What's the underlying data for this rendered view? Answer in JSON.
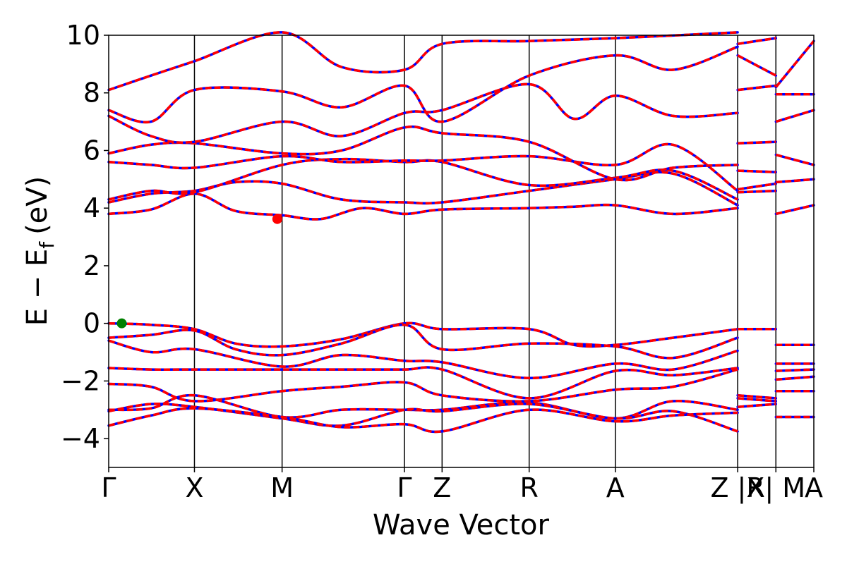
{
  "chart_data": {
    "type": "line",
    "title": "",
    "xlabel": "Wave Vector",
    "ylabel": "E − E",
    "ylabel_subscript": "f",
    "ylabel_unit": "(eV)",
    "ylim": [
      -5,
      10
    ],
    "yticks": [
      {
        "value": 10,
        "label": "10"
      },
      {
        "value": 8,
        "label": "8"
      },
      {
        "value": 6,
        "label": "6"
      },
      {
        "value": 4,
        "label": "4"
      },
      {
        "value": 2,
        "label": "2"
      },
      {
        "value": 0,
        "label": "0"
      },
      {
        "value": -2,
        "label": "−2"
      },
      {
        "value": -4,
        "label": "−4"
      }
    ],
    "xlim": [
      0,
      1
    ],
    "kpoints": [
      {
        "label": "Γ",
        "x": 0.0
      },
      {
        "label": "X",
        "x": 0.1216
      },
      {
        "label": "M",
        "x": 0.2459
      },
      {
        "label": "Γ",
        "x": 0.4194
      },
      {
        "label": "Z",
        "x": 0.4728
      },
      {
        "label": "R",
        "x": 0.5963
      },
      {
        "label": "A",
        "x": 0.7185
      },
      {
        "label": "Z |R",
        "x": 0.892
      },
      {
        "label": "X| M",
        "x": 0.9462
      },
      {
        "label": "A",
        "x": 1.0
      }
    ],
    "segment_breaks": [
      0.892,
      0.9462
    ],
    "series": [
      {
        "values": [
          [
            0,
            3.8
          ],
          [
            0.06,
            3.95
          ],
          [
            0.1216,
            4.5
          ],
          [
            0.18,
            3.9
          ],
          [
            0.2459,
            3.75
          ],
          [
            0.3,
            3.62
          ],
          [
            0.36,
            4.0
          ],
          [
            0.4194,
            3.8
          ],
          [
            0.4728,
            3.95
          ],
          [
            0.5963,
            4.0
          ],
          [
            0.66,
            4.05
          ],
          [
            0.7185,
            4.1
          ],
          [
            0.8,
            3.8
          ],
          [
            0.892,
            4.0
          ]
        ]
      },
      {
        "values": [
          [
            0,
            4.2
          ],
          [
            0.06,
            4.5
          ],
          [
            0.1216,
            4.6
          ],
          [
            0.18,
            4.9
          ],
          [
            0.2459,
            4.85
          ],
          [
            0.33,
            4.3
          ],
          [
            0.4194,
            4.2
          ],
          [
            0.4728,
            4.2
          ],
          [
            0.5963,
            4.6
          ],
          [
            0.7185,
            5.0
          ],
          [
            0.8,
            5.2
          ],
          [
            0.892,
            4.1
          ]
        ]
      },
      {
        "values": [
          [
            0,
            4.3
          ],
          [
            0.06,
            4.6
          ],
          [
            0.1216,
            4.55
          ],
          [
            0.2459,
            5.5
          ],
          [
            0.33,
            5.7
          ],
          [
            0.4194,
            5.6
          ],
          [
            0.4728,
            5.6
          ],
          [
            0.5963,
            4.8
          ],
          [
            0.7185,
            5.05
          ],
          [
            0.8,
            5.3
          ],
          [
            0.892,
            4.3
          ]
        ]
      },
      {
        "values": [
          [
            0,
            5.6
          ],
          [
            0.06,
            5.5
          ],
          [
            0.1216,
            5.4
          ],
          [
            0.2459,
            5.8
          ],
          [
            0.33,
            5.6
          ],
          [
            0.4194,
            5.65
          ],
          [
            0.4728,
            5.65
          ],
          [
            0.5963,
            5.8
          ],
          [
            0.7185,
            5.5
          ],
          [
            0.8,
            6.2
          ],
          [
            0.892,
            4.6
          ]
        ]
      },
      {
        "values": [
          [
            0,
            5.9
          ],
          [
            0.06,
            6.2
          ],
          [
            0.1216,
            6.25
          ],
          [
            0.2459,
            5.9
          ],
          [
            0.33,
            6.0
          ],
          [
            0.4194,
            6.8
          ],
          [
            0.4728,
            6.6
          ],
          [
            0.5963,
            6.3
          ],
          [
            0.7185,
            5.0
          ],
          [
            0.8,
            5.4
          ],
          [
            0.892,
            5.5
          ]
        ]
      },
      {
        "values": [
          [
            0,
            7.2
          ],
          [
            0.06,
            6.5
          ],
          [
            0.1216,
            6.3
          ],
          [
            0.2459,
            7.0
          ],
          [
            0.33,
            6.5
          ],
          [
            0.4194,
            7.3
          ],
          [
            0.4728,
            7.4
          ],
          [
            0.5963,
            8.3
          ],
          [
            0.66,
            7.1
          ],
          [
            0.7185,
            7.9
          ],
          [
            0.8,
            7.2
          ],
          [
            0.892,
            7.3
          ]
        ]
      },
      {
        "values": [
          [
            0,
            7.4
          ],
          [
            0.06,
            7.0
          ],
          [
            0.1216,
            8.1
          ],
          [
            0.2459,
            8.05
          ],
          [
            0.33,
            7.5
          ],
          [
            0.4194,
            8.25
          ],
          [
            0.4728,
            7.0
          ],
          [
            0.5963,
            8.6
          ],
          [
            0.7185,
            9.3
          ],
          [
            0.8,
            8.8
          ],
          [
            0.892,
            9.6
          ]
        ]
      },
      {
        "values": [
          [
            0,
            8.1
          ],
          [
            0.06,
            8.6
          ],
          [
            0.1216,
            9.1
          ],
          [
            0.2459,
            10.1
          ],
          [
            0.33,
            8.9
          ],
          [
            0.4194,
            8.8
          ],
          [
            0.4728,
            9.7
          ],
          [
            0.5963,
            9.8
          ],
          [
            0.7185,
            9.9
          ],
          [
            0.892,
            10.1
          ]
        ]
      },
      {
        "values": [
          [
            0,
            0.0
          ],
          [
            0.06,
            -0.05
          ],
          [
            0.1216,
            -0.2
          ],
          [
            0.18,
            -0.7
          ],
          [
            0.2459,
            -0.8
          ],
          [
            0.33,
            -0.55
          ],
          [
            0.4194,
            0.0
          ],
          [
            0.4728,
            -0.2
          ],
          [
            0.5963,
            -0.2
          ],
          [
            0.66,
            -0.75
          ],
          [
            0.7185,
            -0.75
          ],
          [
            0.8,
            -0.5
          ],
          [
            0.892,
            -0.2
          ]
        ]
      },
      {
        "values": [
          [
            0,
            -0.5
          ],
          [
            0.06,
            -0.4
          ],
          [
            0.1216,
            -0.25
          ],
          [
            0.18,
            -0.9
          ],
          [
            0.2459,
            -1.1
          ],
          [
            0.33,
            -0.7
          ],
          [
            0.4194,
            -0.05
          ],
          [
            0.4728,
            -0.9
          ],
          [
            0.5963,
            -0.7
          ],
          [
            0.7185,
            -0.8
          ],
          [
            0.8,
            -1.2
          ],
          [
            0.892,
            -0.5
          ]
        ]
      },
      {
        "values": [
          [
            0,
            -0.6
          ],
          [
            0.06,
            -1.0
          ],
          [
            0.1216,
            -0.9
          ],
          [
            0.2459,
            -1.5
          ],
          [
            0.33,
            -1.1
          ],
          [
            0.4194,
            -1.3
          ],
          [
            0.4728,
            -1.35
          ],
          [
            0.5963,
            -1.9
          ],
          [
            0.7185,
            -1.4
          ],
          [
            0.8,
            -1.6
          ],
          [
            0.892,
            -0.95
          ]
        ]
      },
      {
        "values": [
          [
            0,
            -1.55
          ],
          [
            0.06,
            -1.6
          ],
          [
            0.1216,
            -1.6
          ],
          [
            0.2459,
            -1.6
          ],
          [
            0.33,
            -1.6
          ],
          [
            0.4194,
            -1.6
          ],
          [
            0.4728,
            -1.6
          ],
          [
            0.5963,
            -2.6
          ],
          [
            0.7185,
            -1.65
          ],
          [
            0.8,
            -1.8
          ],
          [
            0.892,
            -1.55
          ]
        ]
      },
      {
        "values": [
          [
            0,
            -2.1
          ],
          [
            0.06,
            -2.2
          ],
          [
            0.1216,
            -2.7
          ],
          [
            0.2459,
            -2.35
          ],
          [
            0.33,
            -2.2
          ],
          [
            0.4194,
            -2.05
          ],
          [
            0.4728,
            -2.5
          ],
          [
            0.5963,
            -2.7
          ],
          [
            0.7185,
            -2.3
          ],
          [
            0.8,
            -2.2
          ],
          [
            0.892,
            -1.6
          ]
        ]
      },
      {
        "values": [
          [
            0,
            -3.0
          ],
          [
            0.06,
            -2.95
          ],
          [
            0.1216,
            -2.5
          ],
          [
            0.2459,
            -3.25
          ],
          [
            0.33,
            -3.0
          ],
          [
            0.4194,
            -3.0
          ],
          [
            0.4728,
            -3.0
          ],
          [
            0.5963,
            -2.75
          ],
          [
            0.7185,
            -3.3
          ],
          [
            0.8,
            -2.7
          ],
          [
            0.892,
            -3.0
          ]
        ]
      },
      {
        "values": [
          [
            0,
            -3.05
          ],
          [
            0.06,
            -2.8
          ],
          [
            0.1216,
            -2.9
          ],
          [
            0.2459,
            -3.3
          ],
          [
            0.33,
            -3.55
          ],
          [
            0.4194,
            -3.0
          ],
          [
            0.4728,
            -3.05
          ],
          [
            0.5963,
            -2.8
          ],
          [
            0.7185,
            -3.3
          ],
          [
            0.8,
            -3.05
          ],
          [
            0.892,
            -3.75
          ]
        ]
      },
      {
        "values": [
          [
            0,
            -3.55
          ],
          [
            0.06,
            -3.2
          ],
          [
            0.1216,
            -2.95
          ],
          [
            0.2459,
            -3.25
          ],
          [
            0.33,
            -3.6
          ],
          [
            0.4194,
            -3.5
          ],
          [
            0.4728,
            -3.75
          ],
          [
            0.5963,
            -3.0
          ],
          [
            0.7185,
            -3.4
          ],
          [
            0.8,
            -3.2
          ],
          [
            0.892,
            -3.1
          ]
        ]
      },
      {
        "values": [
          [
            0.892,
            4.55
          ],
          [
            0.9462,
            4.6
          ]
        ]
      },
      {
        "values": [
          [
            0.892,
            4.65
          ],
          [
            0.9462,
            4.85
          ]
        ]
      },
      {
        "values": [
          [
            0.892,
            5.3
          ],
          [
            0.9462,
            5.25
          ]
        ]
      },
      {
        "values": [
          [
            0.892,
            6.25
          ],
          [
            0.9462,
            6.3
          ]
        ]
      },
      {
        "values": [
          [
            0.892,
            8.1
          ],
          [
            0.9462,
            8.25
          ]
        ]
      },
      {
        "values": [
          [
            0.892,
            9.3
          ],
          [
            0.9462,
            8.6
          ]
        ]
      },
      {
        "values": [
          [
            0.892,
            9.7
          ],
          [
            0.9462,
            9.9
          ]
        ]
      },
      {
        "values": [
          [
            0.892,
            -0.2
          ],
          [
            0.9462,
            -0.2
          ]
        ]
      },
      {
        "values": [
          [
            0.892,
            -2.5
          ],
          [
            0.9462,
            -2.6
          ]
        ]
      },
      {
        "values": [
          [
            0.892,
            -2.6
          ],
          [
            0.9462,
            -2.7
          ]
        ]
      },
      {
        "values": [
          [
            0.892,
            -2.9
          ],
          [
            0.9462,
            -2.8
          ]
        ]
      },
      {
        "values": [
          [
            0.9462,
            3.8
          ],
          [
            1.0,
            4.1
          ]
        ]
      },
      {
        "values": [
          [
            0.9462,
            4.9
          ],
          [
            1.0,
            5.0
          ]
        ]
      },
      {
        "values": [
          [
            0.9462,
            5.85
          ],
          [
            1.0,
            5.5
          ]
        ]
      },
      {
        "values": [
          [
            0.9462,
            7.0
          ],
          [
            1.0,
            7.4
          ]
        ]
      },
      {
        "values": [
          [
            0.9462,
            7.95
          ],
          [
            1.0,
            7.95
          ]
        ]
      },
      {
        "values": [
          [
            0.9462,
            8.2
          ],
          [
            1.0,
            9.8
          ]
        ]
      },
      {
        "values": [
          [
            0.9462,
            -0.75
          ],
          [
            1.0,
            -0.75
          ]
        ]
      },
      {
        "values": [
          [
            0.9462,
            -1.4
          ],
          [
            1.0,
            -1.4
          ]
        ]
      },
      {
        "values": [
          [
            0.9462,
            -1.65
          ],
          [
            1.0,
            -1.6
          ]
        ]
      },
      {
        "values": [
          [
            0.9462,
            -1.95
          ],
          [
            1.0,
            -1.85
          ]
        ]
      },
      {
        "values": [
          [
            0.9462,
            -2.35
          ],
          [
            1.0,
            -2.35
          ]
        ]
      },
      {
        "values": [
          [
            0.9462,
            -3.25
          ],
          [
            1.0,
            -3.25
          ]
        ]
      }
    ],
    "markers": [
      {
        "name": "cbm",
        "x": 0.2391,
        "y": 3.62,
        "color": "#ff0000"
      },
      {
        "name": "vbm",
        "x": 0.0185,
        "y": 0.0,
        "color": "#008000"
      }
    ],
    "colors": {
      "band_base": "#0000ff",
      "band_overlay": "#ff0000",
      "axis": "#000000"
    },
    "grid": false,
    "legend": "none"
  }
}
